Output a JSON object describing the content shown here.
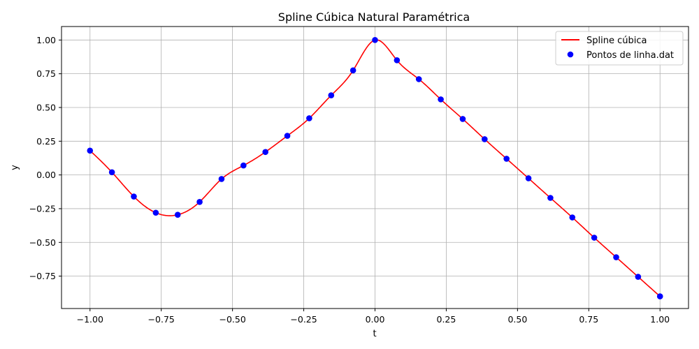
{
  "chart_data": {
    "type": "line",
    "title": "Spline Cúbica Natural Paramétrica",
    "xlabel": "t",
    "ylabel": "y",
    "xlim": [
      -1.1,
      1.1
    ],
    "ylim": [
      -0.99,
      1.1
    ],
    "grid": true,
    "legend_position": "top-right",
    "x_ticks": [
      -1.0,
      -0.75,
      -0.5,
      -0.25,
      0.0,
      0.25,
      0.5,
      0.75,
      1.0
    ],
    "x_tick_labels": [
      "−1.00",
      "−0.75",
      "−0.50",
      "−0.25",
      "0.00",
      "0.25",
      "0.50",
      "0.75",
      "1.00"
    ],
    "y_ticks": [
      -0.75,
      -0.5,
      -0.25,
      0.0,
      0.25,
      0.5,
      0.75,
      1.0
    ],
    "y_tick_labels": [
      "−0.75",
      "−0.50",
      "−0.25",
      "0.00",
      "0.25",
      "0.50",
      "0.75",
      "1.00"
    ],
    "series": [
      {
        "name": "Spline cúbica",
        "kind": "line",
        "color": "#ff0000"
      },
      {
        "name": "Pontos de linha.dat",
        "kind": "markers",
        "color": "#0000ff",
        "x": [
          -1.0,
          -0.9231,
          -0.8462,
          -0.7692,
          -0.6923,
          -0.6154,
          -0.5385,
          -0.4615,
          -0.3846,
          -0.3077,
          -0.2308,
          -0.1538,
          -0.0769,
          0.0,
          0.0769,
          0.1538,
          0.2308,
          0.3077,
          0.3846,
          0.4615,
          0.5385,
          0.6154,
          0.6923,
          0.7692,
          0.8462,
          0.9231,
          1.0
        ],
        "y": [
          0.18,
          0.02,
          -0.16,
          -0.28,
          -0.295,
          -0.2,
          -0.03,
          0.07,
          0.17,
          0.29,
          0.42,
          0.59,
          0.775,
          1.0,
          0.85,
          0.71,
          0.56,
          0.415,
          0.265,
          0.12,
          -0.025,
          -0.17,
          -0.315,
          -0.465,
          -0.61,
          -0.755,
          -0.9
        ]
      }
    ]
  }
}
